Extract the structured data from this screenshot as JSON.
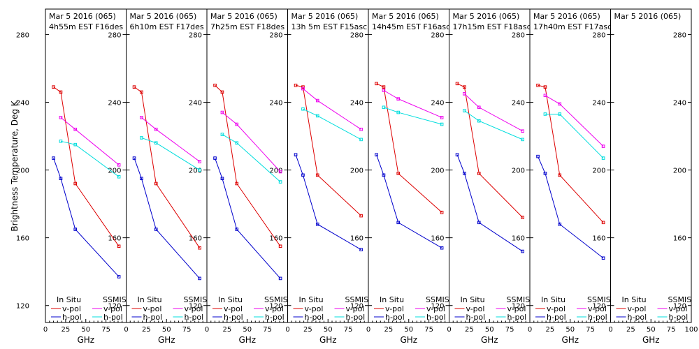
{
  "chart_data": {
    "type": "line",
    "ylabel": "Brightness Temperature, Deg K",
    "xlabel": "GHz",
    "ylim": [
      110,
      295
    ],
    "xlim": [
      0,
      100
    ],
    "yticks": [
      120,
      160,
      200,
      240,
      280
    ],
    "xticks": [
      0,
      25,
      50,
      75
    ],
    "xticks_last_panel": [
      0,
      25,
      50,
      75,
      100
    ],
    "legend_headers": {
      "insitu": "In Situ",
      "ssmis": "SSMIS"
    },
    "series_labels": {
      "v": "v-pol",
      "h": "h-pol"
    },
    "colors": {
      "insitu_v": "#dd0000",
      "insitu_h": "#0000cc",
      "ssmis_v": "#ee00ee",
      "ssmis_h": "#00dddd"
    },
    "panels": [
      {
        "title1": "Mar 5 2016 (065)",
        "title2": "4h55m  EST F16des",
        "insitu_v": [
          [
            10,
            249
          ],
          [
            19,
            246
          ],
          [
            37,
            192
          ],
          [
            91,
            155
          ]
        ],
        "insitu_h": [
          [
            10,
            207
          ],
          [
            19,
            195
          ],
          [
            37,
            165
          ],
          [
            91,
            137
          ]
        ],
        "ssmis_v": [
          [
            19,
            231
          ],
          [
            37,
            224
          ],
          [
            91,
            203
          ]
        ],
        "ssmis_h": [
          [
            19,
            217
          ],
          [
            37,
            215
          ],
          [
            91,
            196
          ]
        ]
      },
      {
        "title1": "Mar 5 2016 (065)",
        "title2": "6h10m  EST F17des",
        "insitu_v": [
          [
            10,
            249
          ],
          [
            19,
            246
          ],
          [
            37,
            192
          ],
          [
            91,
            154
          ]
        ],
        "insitu_h": [
          [
            10,
            207
          ],
          [
            19,
            195
          ],
          [
            37,
            165
          ],
          [
            91,
            136
          ]
        ],
        "ssmis_v": [
          [
            19,
            231
          ],
          [
            37,
            224
          ],
          [
            91,
            205
          ]
        ],
        "ssmis_h": [
          [
            19,
            219
          ],
          [
            37,
            216
          ],
          [
            91,
            200
          ]
        ]
      },
      {
        "title1": "Mar 5 2016 (065)",
        "title2": "7h25m  EST F18des",
        "insitu_v": [
          [
            10,
            250
          ],
          [
            19,
            246
          ],
          [
            37,
            192
          ],
          [
            91,
            155
          ]
        ],
        "insitu_h": [
          [
            10,
            207
          ],
          [
            19,
            195
          ],
          [
            37,
            165
          ],
          [
            91,
            136
          ]
        ],
        "ssmis_v": [
          [
            19,
            234
          ],
          [
            37,
            227
          ],
          [
            91,
            199
          ]
        ],
        "ssmis_h": [
          [
            19,
            221
          ],
          [
            37,
            216
          ],
          [
            91,
            193
          ]
        ]
      },
      {
        "title1": "Mar 5 2016 (065)",
        "title2": "13h 5m  EST F15asc",
        "insitu_v": [
          [
            10,
            250
          ],
          [
            19,
            249
          ],
          [
            37,
            197
          ],
          [
            91,
            173
          ]
        ],
        "insitu_h": [
          [
            10,
            209
          ],
          [
            19,
            197
          ],
          [
            37,
            168
          ],
          [
            91,
            153
          ]
        ],
        "ssmis_v": [
          [
            19,
            248
          ],
          [
            37,
            241
          ],
          [
            91,
            224
          ]
        ],
        "ssmis_h": [
          [
            19,
            236
          ],
          [
            37,
            232
          ],
          [
            91,
            218
          ]
        ]
      },
      {
        "title1": "Mar 5 2016 (065)",
        "title2": "14h45m  EST F16asc",
        "insitu_v": [
          [
            10,
            251
          ],
          [
            19,
            249
          ],
          [
            37,
            198
          ],
          [
            91,
            175
          ]
        ],
        "insitu_h": [
          [
            10,
            209
          ],
          [
            19,
            197
          ],
          [
            37,
            169
          ],
          [
            91,
            154
          ]
        ],
        "ssmis_v": [
          [
            19,
            247
          ],
          [
            37,
            242
          ],
          [
            91,
            231
          ]
        ],
        "ssmis_h": [
          [
            19,
            237
          ],
          [
            37,
            234
          ],
          [
            91,
            227
          ]
        ]
      },
      {
        "title1": "Mar 5 2016 (065)",
        "title2": "17h15m  EST F18asc",
        "insitu_v": [
          [
            10,
            251
          ],
          [
            19,
            249
          ],
          [
            37,
            198
          ],
          [
            91,
            172
          ]
        ],
        "insitu_h": [
          [
            10,
            209
          ],
          [
            19,
            198
          ],
          [
            37,
            169
          ],
          [
            91,
            152
          ]
        ],
        "ssmis_v": [
          [
            19,
            245
          ],
          [
            37,
            237
          ],
          [
            91,
            223
          ]
        ],
        "ssmis_h": [
          [
            19,
            235
          ],
          [
            37,
            229
          ],
          [
            91,
            218
          ]
        ]
      },
      {
        "title1": "Mar 5 2016 (065)",
        "title2": "17h40m  EST F17asc",
        "insitu_v": [
          [
            10,
            250
          ],
          [
            19,
            249
          ],
          [
            37,
            197
          ],
          [
            91,
            169
          ]
        ],
        "insitu_h": [
          [
            10,
            208
          ],
          [
            19,
            198
          ],
          [
            37,
            168
          ],
          [
            91,
            148
          ]
        ],
        "ssmis_v": [
          [
            19,
            244
          ],
          [
            37,
            239
          ],
          [
            91,
            214
          ]
        ],
        "ssmis_h": [
          [
            19,
            233
          ],
          [
            37,
            233
          ],
          [
            91,
            207
          ]
        ]
      },
      {
        "title1": "Mar 5 2016 (065)",
        "title2": "",
        "insitu_v": [],
        "insitu_h": [],
        "ssmis_v": [],
        "ssmis_h": []
      }
    ]
  }
}
